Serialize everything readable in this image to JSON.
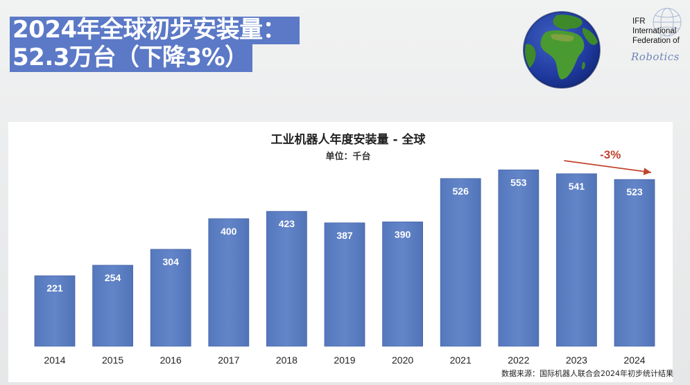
{
  "headline": {
    "line1": "2024年全球初步安装量：",
    "line2": "52.3万台（下降3%）"
  },
  "logo": {
    "text_lines": [
      "IFR",
      "International",
      "Federation of"
    ],
    "script_word": "Robotics"
  },
  "source_note": "数据来源：国际机器人联合会2024年初步统计结果",
  "colors": {
    "bar": "#5a7cc0",
    "headline_bg": "#5b79c6",
    "annotation": "#c0442e"
  },
  "chart_data": {
    "type": "bar",
    "title": "工业机器人年度安装量 - 全球",
    "subtitle": "单位：千台",
    "xlabel": "",
    "ylabel": "",
    "categories": [
      "2014",
      "2015",
      "2016",
      "2017",
      "2018",
      "2019",
      "2020",
      "2021",
      "2022",
      "2023",
      "2024"
    ],
    "values": [
      221,
      254,
      304,
      400,
      423,
      387,
      390,
      526,
      553,
      541,
      523
    ],
    "value_labels": [
      "221",
      "254",
      "304",
      "400",
      "423",
      "387",
      "390",
      "526",
      "553",
      "541",
      "523"
    ],
    "ylim": [
      0,
      600
    ],
    "grid": false,
    "legend": "none",
    "annotation": {
      "text": "-3%",
      "from_category": "2023",
      "to_category": "2024"
    }
  }
}
